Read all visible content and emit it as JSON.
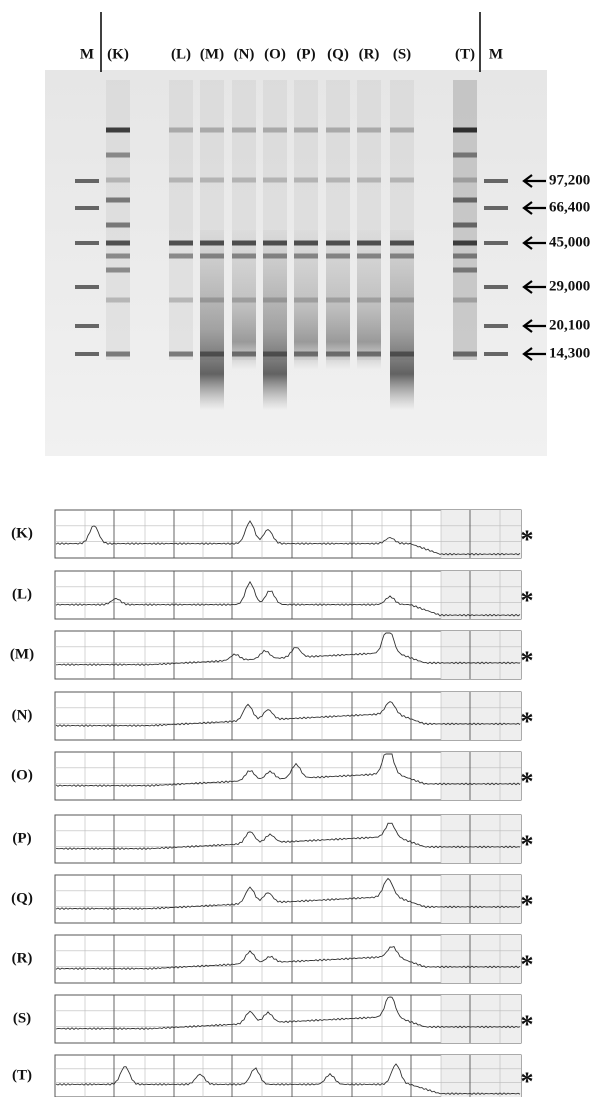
{
  "gel": {
    "lanes": [
      "M",
      "(K)",
      "(L)",
      "(M)",
      "(N)",
      "(O)",
      "(P)",
      "(Q)",
      "(R)",
      "(S)",
      "(T)",
      "M"
    ],
    "markers": [
      "97,200",
      "66,400",
      "45,000",
      "29,000",
      "20,100",
      "14,300"
    ]
  },
  "traces": [
    {
      "label": "(K)",
      "marker": "*"
    },
    {
      "label": "(L)",
      "marker": "*"
    },
    {
      "label": "(M)",
      "marker": "*"
    },
    {
      "label": "(N)",
      "marker": "*"
    },
    {
      "label": "(O)",
      "marker": "*"
    },
    {
      "label": "(P)",
      "marker": "*"
    },
    {
      "label": "(Q)",
      "marker": "*"
    },
    {
      "label": "(R)",
      "marker": "*"
    },
    {
      "label": "(S)",
      "marker": "*"
    },
    {
      "label": "(T)",
      "marker": "*"
    }
  ]
}
